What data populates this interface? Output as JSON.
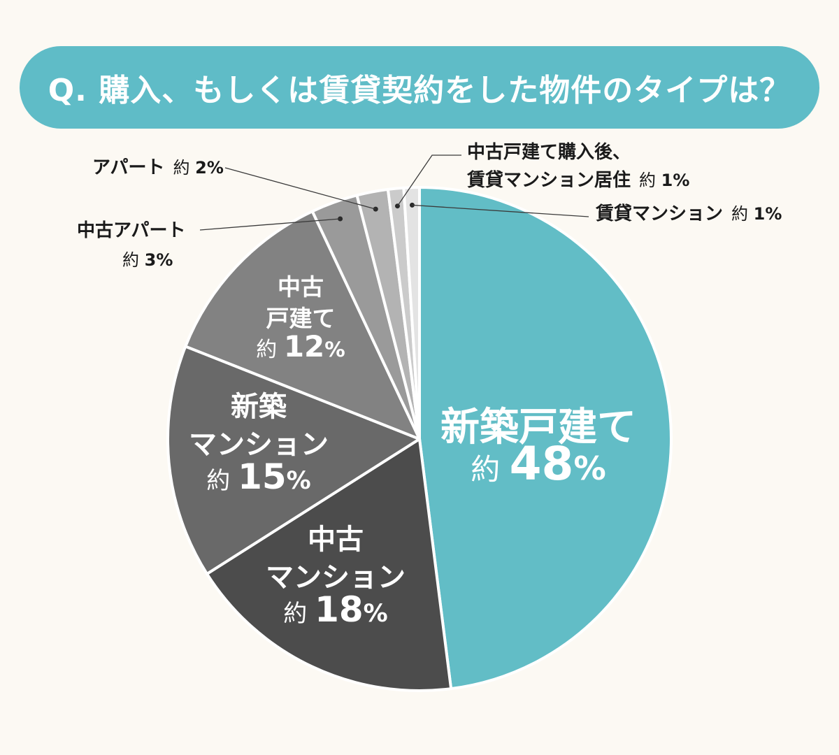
{
  "title": "Q. 購入、もしくは賃貸契約をした物件のタイプは？",
  "chart_data": {
    "type": "pie",
    "start": "12 o'clock",
    "direction": "clockwise",
    "slices": [
      {
        "label_lines": [
          "新築戸建て"
        ],
        "prefix": "約",
        "value": 48,
        "unit": "%",
        "color": "#62bdc6",
        "label_position": "inside",
        "label_color": "#ffffff"
      },
      {
        "label_lines": [
          "中古",
          "マンション"
        ],
        "prefix": "約",
        "value": 18,
        "unit": "%",
        "color": "#4c4c4c",
        "label_position": "inside",
        "label_color": "#ffffff"
      },
      {
        "label_lines": [
          "新築",
          "マンション"
        ],
        "prefix": "約",
        "value": 15,
        "unit": "%",
        "color": "#696969",
        "label_position": "inside",
        "label_color": "#ffffff"
      },
      {
        "label_lines": [
          "中古",
          "戸建て"
        ],
        "prefix": "約",
        "value": 12,
        "unit": "%",
        "color": "#828282",
        "label_position": "inside",
        "label_color": "#ffffff"
      },
      {
        "label_lines": [
          "中古アパート"
        ],
        "prefix": "約",
        "value": 3,
        "unit": "%",
        "color": "#9a9a9a",
        "label_position": "outside",
        "label_color": "#1a1a1a"
      },
      {
        "label_lines": [
          "アパート"
        ],
        "prefix": "約",
        "value": 2,
        "unit": "%",
        "color": "#b3b3b3",
        "label_position": "outside",
        "label_color": "#1a1a1a"
      },
      {
        "label_lines": [
          "中古戸建て購入後、",
          "賃貸マンション居住"
        ],
        "prefix": "約",
        "value": 1,
        "unit": "%",
        "color": "#cbcbcb",
        "label_position": "outside",
        "label_color": "#1a1a1a"
      },
      {
        "label_lines": [
          "賃貸マンション"
        ],
        "prefix": "約",
        "value": 1,
        "unit": "%",
        "color": "#e3e3e3",
        "label_position": "outside",
        "label_color": "#1a1a1a"
      }
    ]
  }
}
